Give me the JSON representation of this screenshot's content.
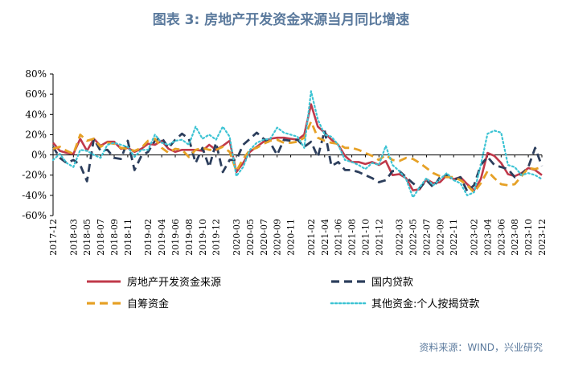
{
  "title": "图表 3:  房地产开发资金来源当月同比增速",
  "source": "资料来源：WIND，兴业研究",
  "chart_data": {
    "type": "line",
    "x": [
      "2017-12",
      "2018-01",
      "2018-02",
      "2018-03",
      "2018-04",
      "2018-05",
      "2018-06",
      "2018-07",
      "2018-08",
      "2018-09",
      "2018-10",
      "2018-11",
      "2018-12",
      "2019-01",
      "2019-02",
      "2019-03",
      "2019-04",
      "2019-05",
      "2019-06",
      "2019-07",
      "2019-08",
      "2019-09",
      "2019-10",
      "2019-11",
      "2019-12",
      "2020-01",
      "2020-02",
      "2020-03",
      "2020-04",
      "2020-05",
      "2020-06",
      "2020-07",
      "2020-08",
      "2020-09",
      "2020-10",
      "2020-11",
      "2020-12",
      "2021-01",
      "2021-02",
      "2021-03",
      "2021-04",
      "2021-05",
      "2021-06",
      "2021-07",
      "2021-08",
      "2021-09",
      "2021-10",
      "2021-11",
      "2021-12",
      "2022-01",
      "2022-02",
      "2022-03",
      "2022-04",
      "2022-05",
      "2022-06",
      "2022-07",
      "2022-08",
      "2022-09",
      "2022-10",
      "2022-11",
      "2022-12",
      "2023-01",
      "2023-02",
      "2023-03",
      "2023-04",
      "2023-05",
      "2023-06",
      "2023-07",
      "2023-08",
      "2023-09",
      "2023-10",
      "2023-11",
      "2023-12"
    ],
    "x_tick_labels": [
      "2017-12",
      "2018-03",
      "2018-05",
      "2018-07",
      "2018-09",
      "2018-11",
      "2019-02",
      "2019-04",
      "2019-06",
      "2019-08",
      "2019-10",
      "2019-12",
      "2020-03",
      "2020-05",
      "2020-07",
      "2020-09",
      "2020-11",
      "2021-02",
      "2021-04",
      "2021-06",
      "2021-08",
      "2021-10",
      "2021-12",
      "2022-03",
      "2022-05",
      "2022-07",
      "2022-09",
      "2022-11",
      "2023-02",
      "2023-04",
      "2023-06",
      "2023-08",
      "2023-10",
      "2023-12"
    ],
    "y_ticks": [
      "80%",
      "60%",
      "40%",
      "20%",
      "0%",
      "-20%",
      "-40%",
      "-60%"
    ],
    "ylim": [
      -60,
      80
    ],
    "grid": false,
    "legend_position": "bottom",
    "series": [
      {
        "name": "房地产开发资金来源",
        "color": "#c0394a",
        "style": "solid",
        "values": [
          12,
          4,
          2,
          1,
          16,
          4,
          16,
          9,
          13,
          13,
          6,
          7,
          3,
          6,
          11,
          10,
          14,
          6,
          3,
          5,
          5,
          5,
          4,
          10,
          5,
          9,
          14,
          -17,
          -8,
          3,
          8,
          13,
          16,
          17,
          17,
          16,
          15,
          20,
          50,
          28,
          22,
          15,
          10,
          -1,
          -7,
          -7,
          -9,
          -7,
          -10,
          -6,
          -20,
          -19,
          -23,
          -35,
          -34,
          -24,
          -28,
          -27,
          -20,
          -24,
          -22,
          -29,
          -35,
          -24,
          2,
          -1,
          -8,
          -19,
          -21,
          -18,
          -13,
          -15,
          -20
        ]
      },
      {
        "name": "国内贷款",
        "color": "#2c3e5c",
        "style": "dash",
        "values": [
          8,
          -3,
          -8,
          -5,
          -10,
          -26,
          16,
          4,
          5,
          -3,
          -4,
          14,
          -15,
          -1,
          3,
          14,
          17,
          7,
          15,
          21,
          16,
          -8,
          7,
          -12,
          12,
          -17,
          -5,
          -5,
          10,
          16,
          22,
          16,
          12,
          0,
          15,
          14,
          15,
          8,
          13,
          -2,
          24,
          -11,
          -7,
          -15,
          -15,
          -17,
          -20,
          -23,
          -27,
          -25,
          -16,
          -16,
          -22,
          -28,
          -33,
          -25,
          -32,
          -22,
          -20,
          -25,
          -22,
          -36,
          -30,
          -10,
          -2,
          -10,
          -12,
          -14,
          -22,
          -19,
          -12,
          7,
          -11
        ]
      },
      {
        "name": "自筹资金",
        "color": "#e6a126",
        "style": "dash",
        "values": [
          6,
          8,
          4,
          1,
          20,
          14,
          16,
          8,
          12,
          11,
          7,
          6,
          4,
          7,
          14,
          16,
          7,
          2,
          6,
          5,
          -2,
          5,
          7,
          5,
          5,
          8,
          3,
          -16,
          -4,
          5,
          7,
          11,
          14,
          15,
          12,
          12,
          13,
          17,
          33,
          17,
          14,
          12,
          11,
          7,
          7,
          5,
          2,
          -1,
          -5,
          0,
          -5,
          -6,
          -3,
          -4,
          -8,
          -13,
          -18,
          -21,
          -22,
          -22,
          -25,
          -30,
          -37,
          -28,
          -16,
          -23,
          -29,
          -30,
          -29,
          -21,
          -13,
          -14,
          -12
        ]
      },
      {
        "name": "其他资金:个人按揭贷款",
        "color": "#3ec4d4",
        "style": "dot",
        "values": [
          -5,
          1,
          -8,
          -12,
          5,
          4,
          0,
          -3,
          10,
          12,
          10,
          8,
          -2,
          5,
          5,
          20,
          12,
          10,
          14,
          15,
          10,
          28,
          16,
          20,
          15,
          28,
          18,
          -21,
          -12,
          5,
          12,
          15,
          16,
          27,
          22,
          20,
          18,
          7,
          63,
          35,
          20,
          18,
          10,
          -5,
          -7,
          -10,
          -14,
          -8,
          -10,
          9,
          -10,
          -16,
          -24,
          -42,
          -32,
          -23,
          -30,
          -24,
          -18,
          -25,
          -28,
          -40,
          -37,
          -10,
          21,
          24,
          22,
          -10,
          -12,
          -20,
          -18,
          -20,
          -24
        ]
      }
    ]
  }
}
